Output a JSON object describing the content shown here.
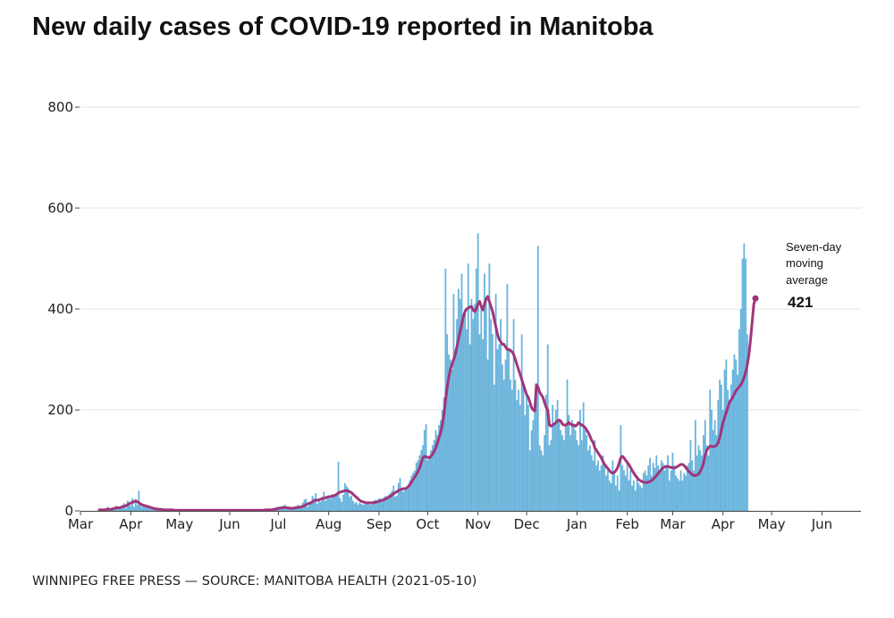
{
  "title": "New daily cases of COVID-19 reported in Manitoba",
  "source": "WINNIPEG FREE PRESS — SOURCE: MANITOBA HEALTH (2021-05-10)",
  "colors": {
    "bars": "#6ab4dc",
    "average": "#a0357a",
    "grid": "#e6e6e6",
    "axis": "#444444"
  },
  "annotation": {
    "line1": "Seven-day",
    "line2": "moving",
    "line3": "average",
    "value": "421"
  },
  "chart_data": {
    "type": "bar",
    "title": "New daily cases of COVID-19 reported in Manitoba",
    "xlabel": "",
    "ylabel": "",
    "ylim": [
      0,
      800
    ],
    "y_ticks": [
      0,
      200,
      400,
      600,
      800
    ],
    "y_tick_labels": [
      "0",
      "200",
      "400",
      "600",
      "800"
    ],
    "x_range": [
      "2020-03-01",
      "2021-06-25"
    ],
    "x_tick_labels": [
      "Mar",
      "Apr",
      "May",
      "Jun",
      "Jul",
      "Aug",
      "Sep",
      "Oct",
      "Nov",
      "Dec",
      "Jan",
      "Feb",
      "Mar",
      "Apr",
      "May",
      "Jun"
    ],
    "x_ticks": [
      "2020-03-01",
      "2020-04-01",
      "2020-05-01",
      "2020-06-01",
      "2020-07-01",
      "2020-08-01",
      "2020-09-01",
      "2020-10-01",
      "2020-11-01",
      "2020-12-01",
      "2021-01-01",
      "2021-02-01",
      "2021-03-01",
      "2021-04-01",
      "2021-05-01",
      "2021-06-01"
    ],
    "grid": true,
    "series": [
      {
        "kind": "bar",
        "start_date": "2020-03-12",
        "values": [
          2,
          1,
          3,
          2,
          1,
          5,
          8,
          3,
          2,
          6,
          4,
          10,
          6,
          4,
          8,
          12,
          15,
          5,
          20,
          18,
          10,
          25,
          8,
          22,
          12,
          40,
          15,
          8,
          10,
          12,
          8,
          6,
          5,
          4,
          3,
          2,
          5,
          1,
          3,
          2,
          2,
          1,
          1,
          0,
          3,
          1,
          2,
          1,
          0,
          1,
          1,
          2,
          2,
          0,
          1,
          1,
          0,
          1,
          2,
          2,
          1,
          2,
          0,
          1,
          1,
          0,
          3,
          1,
          0,
          2,
          2,
          0,
          1,
          0,
          1,
          1,
          2,
          0,
          1,
          0,
          1,
          2,
          1,
          0,
          1,
          1,
          3,
          0,
          2,
          1,
          0,
          0,
          1,
          3,
          0,
          2,
          0,
          3,
          0,
          1,
          2,
          1,
          2,
          3,
          4,
          3,
          2,
          2,
          5,
          4,
          8,
          7,
          9,
          6,
          10,
          12,
          4,
          5,
          5,
          4,
          6,
          8,
          7,
          12,
          5,
          10,
          16,
          22,
          24,
          8,
          15,
          18,
          30,
          25,
          35,
          14,
          22,
          18,
          28,
          38,
          20,
          26,
          30,
          24,
          33,
          30,
          32,
          30,
          97,
          25,
          18,
          32,
          55,
          50,
          45,
          28,
          30,
          20,
          15,
          18,
          12,
          16,
          14,
          12,
          13,
          14,
          18,
          15,
          12,
          17,
          20,
          22,
          18,
          25,
          24,
          20,
          26,
          30,
          28,
          32,
          35,
          40,
          50,
          28,
          30,
          55,
          65,
          40,
          38,
          45,
          42,
          50,
          60,
          70,
          75,
          80,
          95,
          100,
          110,
          120,
          130,
          160,
          172,
          100,
          110,
          120,
          130,
          140,
          160,
          150,
          170,
          180,
          200,
          225,
          480,
          350,
          310,
          300,
          280,
          430,
          320,
          380,
          440,
          420,
          470,
          380,
          400,
          360,
          490,
          330,
          420,
          380,
          410,
          480,
          550,
          350,
          400,
          340,
          470,
          420,
          300,
          490,
          380,
          350,
          250,
          430,
          320,
          330,
          380,
          290,
          260,
          300,
          450,
          320,
          260,
          240,
          380,
          260,
          220,
          240,
          210,
          350,
          250,
          190,
          230,
          210,
          120,
          160,
          180,
          200,
          230,
          525,
          130,
          120,
          110,
          150,
          230,
          330,
          130,
          140,
          210,
          170,
          200,
          220,
          180,
          160,
          150,
          140,
          170,
          260,
          190,
          150,
          180,
          170,
          160,
          140,
          130,
          200,
          140,
          215,
          160,
          150,
          120,
          130,
          110,
          100,
          140,
          90,
          100,
          80,
          90,
          110,
          95,
          70,
          80,
          60,
          55,
          100,
          80,
          50,
          70,
          40,
          170,
          90,
          80,
          70,
          100,
          60,
          80,
          50,
          60,
          40,
          70,
          55,
          50,
          45,
          75,
          80,
          70,
          90,
          105,
          70,
          95,
          85,
          110,
          90,
          75,
          100,
          95,
          80,
          85,
          110,
          60,
          80,
          115,
          90,
          70,
          65,
          60,
          80,
          60,
          75,
          70,
          90,
          95,
          140,
          100,
          80,
          180,
          110,
          130,
          120,
          110,
          150,
          180,
          130,
          110,
          240,
          200,
          160,
          180,
          150,
          220,
          260,
          250,
          200,
          280,
          300,
          240,
          220,
          250,
          280,
          310,
          300,
          270,
          360,
          400,
          500,
          530,
          500,
          350
        ]
      },
      {
        "kind": "line",
        "name": "Seven-day moving average",
        "start_date": "2020-03-12",
        "values": [
          2,
          2,
          2,
          2,
          2,
          3,
          3,
          3,
          3,
          4,
          5,
          6,
          6,
          6,
          7,
          8,
          9,
          10,
          12,
          14,
          15,
          17,
          18,
          20,
          18,
          16,
          14,
          12,
          11,
          10,
          9,
          8,
          7,
          6,
          5,
          4,
          4,
          3,
          3,
          3,
          2,
          2,
          2,
          2,
          2,
          2,
          2,
          1,
          1,
          1,
          1,
          1,
          1,
          1,
          1,
          1,
          1,
          1,
          1,
          1,
          1,
          1,
          1,
          1,
          1,
          1,
          1,
          1,
          1,
          1,
          1,
          1,
          1,
          1,
          1,
          1,
          1,
          1,
          1,
          1,
          1,
          1,
          1,
          1,
          1,
          1,
          1,
          1,
          1,
          1,
          1,
          1,
          1,
          1,
          1,
          1,
          1,
          1,
          1,
          1,
          1,
          1,
          1,
          2,
          2,
          2,
          2,
          2,
          3,
          3,
          4,
          5,
          5,
          6,
          6,
          7,
          6,
          6,
          5,
          5,
          5,
          6,
          6,
          7,
          7,
          8,
          9,
          10,
          12,
          14,
          15,
          16,
          18,
          20,
          21,
          21,
          22,
          23,
          24,
          25,
          26,
          27,
          28,
          28,
          29,
          30,
          31,
          33,
          36,
          37,
          38,
          39,
          40,
          40,
          39,
          38,
          36,
          33,
          30,
          27,
          24,
          21,
          19,
          18,
          17,
          16,
          16,
          16,
          16,
          16,
          17,
          17,
          18,
          19,
          20,
          21,
          22,
          24,
          25,
          27,
          29,
          32,
          34,
          36,
          38,
          40,
          42,
          43,
          44,
          44,
          45,
          48,
          52,
          57,
          62,
          67,
          72,
          78,
          85,
          95,
          105,
          108,
          107,
          106,
          105,
          108,
          112,
          118,
          125,
          135,
          145,
          155,
          170,
          190,
          220,
          245,
          265,
          280,
          290,
          300,
          310,
          325,
          340,
          355,
          370,
          385,
          395,
          400,
          402,
          404,
          405,
          398,
          395,
          400,
          410,
          415,
          405,
          398,
          410,
          420,
          425,
          415,
          405,
          395,
          380,
          365,
          350,
          340,
          335,
          330,
          330,
          325,
          320,
          320,
          318,
          315,
          310,
          300,
          290,
          280,
          270,
          260,
          250,
          240,
          230,
          225,
          215,
          205,
          200,
          198,
          250,
          245,
          235,
          230,
          225,
          215,
          205,
          200,
          170,
          168,
          170,
          172,
          175,
          178,
          180,
          178,
          172,
          170,
          170,
          172,
          175,
          172,
          170,
          170,
          168,
          170,
          175,
          172,
          170,
          168,
          165,
          160,
          155,
          148,
          140,
          135,
          125,
          120,
          115,
          110,
          105,
          98,
          92,
          88,
          84,
          80,
          76,
          75,
          76,
          80,
          85,
          95,
          105,
          108,
          105,
          100,
          96,
          92,
          86,
          80,
          75,
          70,
          66,
          62,
          60,
          58,
          57,
          56,
          56,
          57,
          58,
          60,
          63,
          66,
          70,
          74,
          78,
          82,
          85,
          87,
          88,
          88,
          87,
          86,
          85,
          85,
          86,
          88,
          90,
          92,
          92,
          90,
          86,
          82,
          78,
          75,
          72,
          70,
          70,
          71,
          73,
          78,
          85,
          95,
          110,
          120,
          125,
          128,
          128,
          127,
          128,
          130,
          135,
          145,
          160,
          175,
          185,
          195,
          205,
          215,
          220,
          225,
          232,
          238,
          242,
          246,
          250,
          256,
          264,
          275,
          290,
          310,
          340,
          375,
          410,
          421
        ]
      }
    ]
  }
}
